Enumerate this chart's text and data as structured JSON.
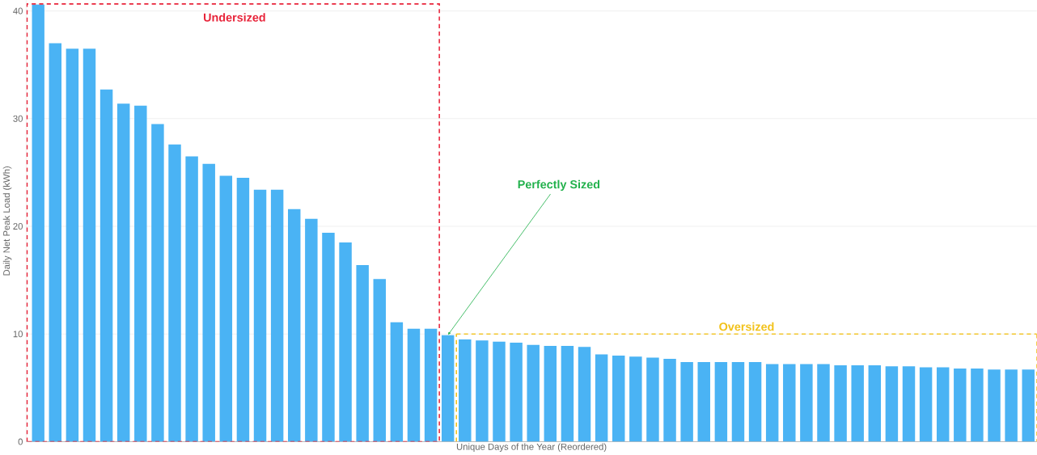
{
  "chart_data": {
    "type": "bar",
    "xlabel": "Unique Days of the Year (Reordered)",
    "ylabel": "Daily Net Peak Load (kWh)",
    "categories": [
      null,
      null,
      null,
      null,
      null,
      null,
      null,
      null,
      null,
      null,
      null,
      null,
      null,
      null,
      null,
      null,
      null,
      null,
      null,
      null,
      null,
      null,
      null,
      null,
      null,
      null,
      null,
      null,
      null,
      null,
      null,
      null,
      null,
      null,
      null,
      null,
      null,
      null,
      null,
      null,
      null,
      null,
      null,
      null,
      null,
      null,
      null,
      null,
      null,
      null,
      null,
      null,
      null,
      null,
      null,
      null,
      null,
      null,
      null
    ],
    "values": [
      40.6,
      37,
      36.5,
      36.5,
      32.7,
      31.4,
      31.2,
      29.5,
      27.6,
      26.5,
      25.8,
      24.7,
      24.5,
      23.4,
      23.4,
      21.6,
      20.7,
      19.4,
      18.5,
      16.4,
      15.1,
      11.1,
      10.5,
      10.5,
      9.9,
      9.5,
      9.4,
      9.3,
      9.2,
      9.0,
      8.9,
      8.9,
      8.8,
      8.1,
      8.0,
      7.9,
      7.8,
      7.7,
      7.4,
      7.4,
      7.4,
      7.4,
      7.4,
      7.2,
      7.2,
      7.2,
      7.2,
      7.1,
      7.1,
      7.1,
      7.0,
      7.0,
      6.9,
      6.9,
      6.8,
      6.8,
      6.7,
      6.7,
      6.7
    ],
    "color": "#4ab3f4",
    "ylim": [
      0,
      41
    ],
    "yticks": [
      0,
      10,
      20,
      30,
      40
    ],
    "grid": "y",
    "ref_lines": [
      {
        "axis": "y",
        "value": 10,
        "label": "Oversized",
        "color": "#f2c21b",
        "line_style": "dashed"
      }
    ],
    "annotations": [
      "Undersized",
      "Perfectly Sized"
    ]
  }
}
